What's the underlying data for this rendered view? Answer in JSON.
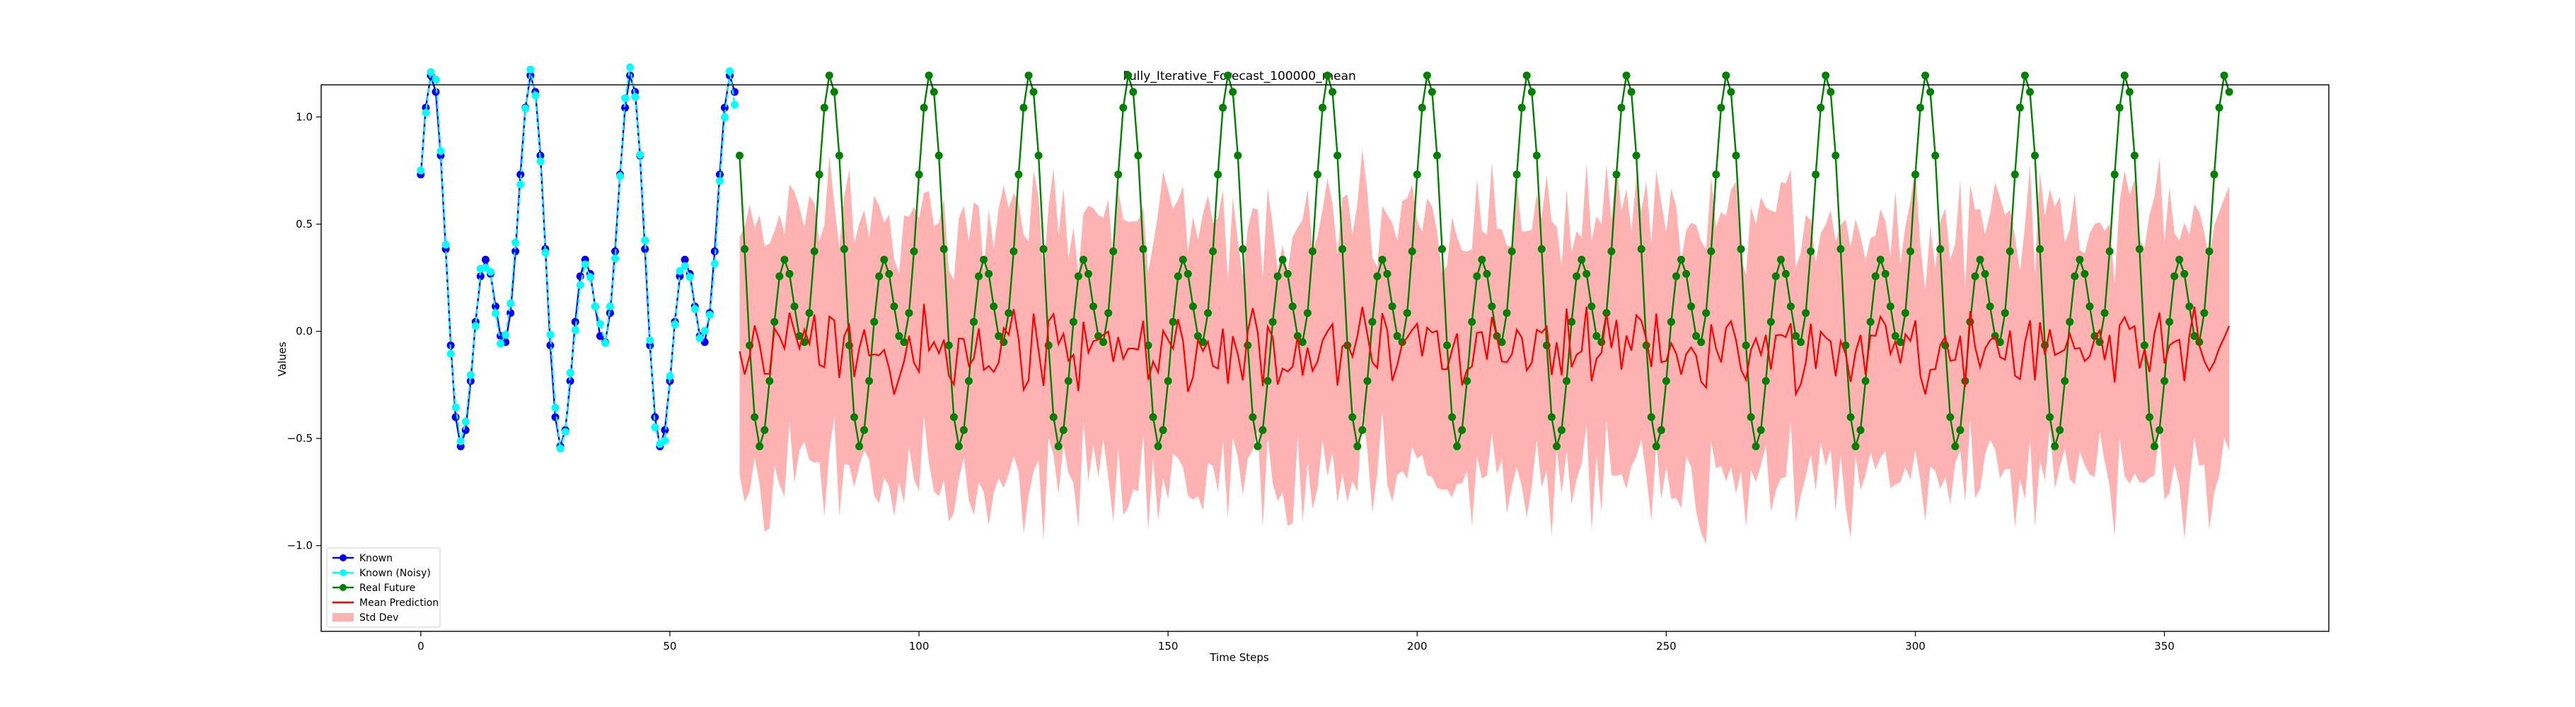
{
  "chart_data": {
    "type": "line",
    "title": "Fully_Iterative_Forecast_100000_mean",
    "xlabel": "Time Steps",
    "ylabel": "Values",
    "xlim": [
      -20,
      383
    ],
    "ylim": [
      -1.4,
      1.15
    ],
    "x_ticks": [
      0,
      50,
      100,
      150,
      200,
      250,
      300,
      350
    ],
    "y_ticks": [
      -1.0,
      -0.5,
      0.0,
      0.5,
      1.0
    ],
    "x_tick_labels": [
      "0",
      "50",
      "100",
      "150",
      "200",
      "250",
      "300",
      "350"
    ],
    "y_tick_labels": [
      "−1.0",
      "−0.5",
      "0.0",
      "0.5",
      "1.0"
    ],
    "grid": false,
    "legend_position": "lower-left",
    "legend": [
      {
        "label": "Known",
        "color": "#0000ff",
        "kind": "line-marker"
      },
      {
        "label": "Known (Noisy)",
        "color": "#00ffff",
        "kind": "line-marker"
      },
      {
        "label": "Real Future",
        "color": "#008000",
        "kind": "line-marker"
      },
      {
        "label": "Mean Prediction",
        "color": "#ff0000",
        "kind": "line"
      },
      {
        "label": "Std Dev",
        "color": "#ff0000",
        "kind": "patch",
        "opacity": 0.3
      }
    ],
    "series_model": {
      "description_of_signal": "y(t) = 0.5*sin(2*pi*t/10) + 0.5*sin(2*pi*t/20 + 1.3) + 0.25; known t=0..63, future t=64..363",
      "known_range": [
        0,
        63
      ],
      "future_range": [
        64,
        363
      ],
      "std_dev_band_range": [
        64,
        363
      ],
      "mean_prediction_typical_range": [
        -0.3,
        0.15
      ],
      "std_dev_band_typical_half_width": 0.55
    },
    "series": [
      {
        "name": "Known",
        "color": "#0000ff",
        "style": "solid",
        "marker": "o"
      },
      {
        "name": "Known (Noisy)",
        "color": "#00ffff",
        "style": "dashed",
        "marker": "o"
      },
      {
        "name": "Real Future",
        "color": "#008000",
        "style": "solid",
        "marker": "o"
      },
      {
        "name": "Mean Prediction",
        "color": "#ff0000",
        "style": "solid",
        "marker": "none"
      },
      {
        "name": "Std Dev",
        "color": "#ff0000",
        "style": "fill",
        "opacity": 0.3
      }
    ]
  }
}
